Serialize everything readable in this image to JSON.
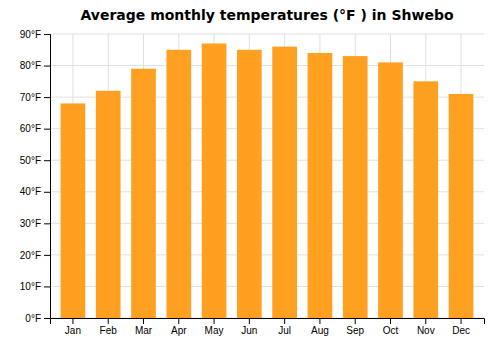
{
  "chart_data": {
    "type": "bar",
    "title": "Average monthly temperatures (°F ) in Shwebo",
    "categories": [
      "Jan",
      "Feb",
      "Mar",
      "Apr",
      "May",
      "Jun",
      "Jul",
      "Aug",
      "Sep",
      "Oct",
      "Nov",
      "Dec"
    ],
    "values": [
      68,
      72,
      79,
      85,
      87,
      85,
      86,
      84,
      83,
      81,
      75,
      71
    ],
    "color": "#FFA020",
    "ylim": [
      0,
      90
    ],
    "yticks": [
      {
        "value": 0,
        "label": "0°F"
      },
      {
        "value": 10,
        "label": "10°F"
      },
      {
        "value": 20,
        "label": "20°F"
      },
      {
        "value": 30,
        "label": "30°F"
      },
      {
        "value": 40,
        "label": "40°F"
      },
      {
        "value": 50,
        "label": "50°F"
      },
      {
        "value": 60,
        "label": "60°F"
      },
      {
        "value": 70,
        "label": "70°F"
      },
      {
        "value": 80,
        "label": "80°F"
      },
      {
        "value": 90,
        "label": "90°F"
      }
    ],
    "grid": true
  }
}
